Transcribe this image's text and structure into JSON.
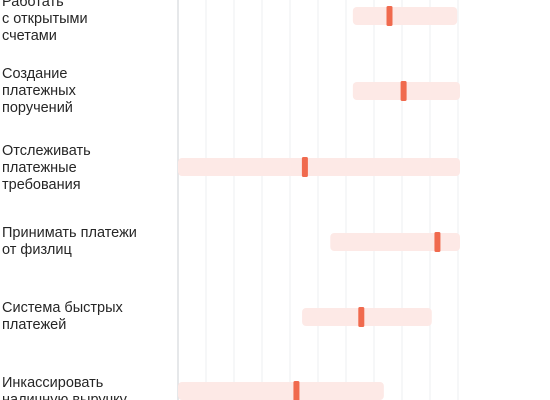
{
  "colors": {
    "range": "#fde9e6",
    "marker": "#f06a4e",
    "grid": "#eceff2",
    "axis": "#d5d8dc",
    "text": "#262626"
  },
  "chart_data": {
    "type": "range",
    "title": "",
    "xlabel": "",
    "ylabel": "",
    "xlim": [
      0,
      100
    ],
    "grid": true,
    "legend": "none",
    "categories": [
      "Работать\nс открытыми\nсчетами",
      "Создание\nплатежных\nпоручений",
      "Отслеживать\nплатежные\nтребования",
      "Принимать платежи\nот физлиц",
      "Система быстрых\nплатежей",
      "Инкассировать\nналичную выручку"
    ],
    "series": [
      {
        "low": [
          62,
          62,
          0,
          54,
          44,
          0
        ],
        "high": [
          99,
          100,
          100,
          100,
          90,
          73
        ],
        "marker": [
          75,
          80,
          45,
          92,
          65,
          42
        ]
      }
    ]
  }
}
